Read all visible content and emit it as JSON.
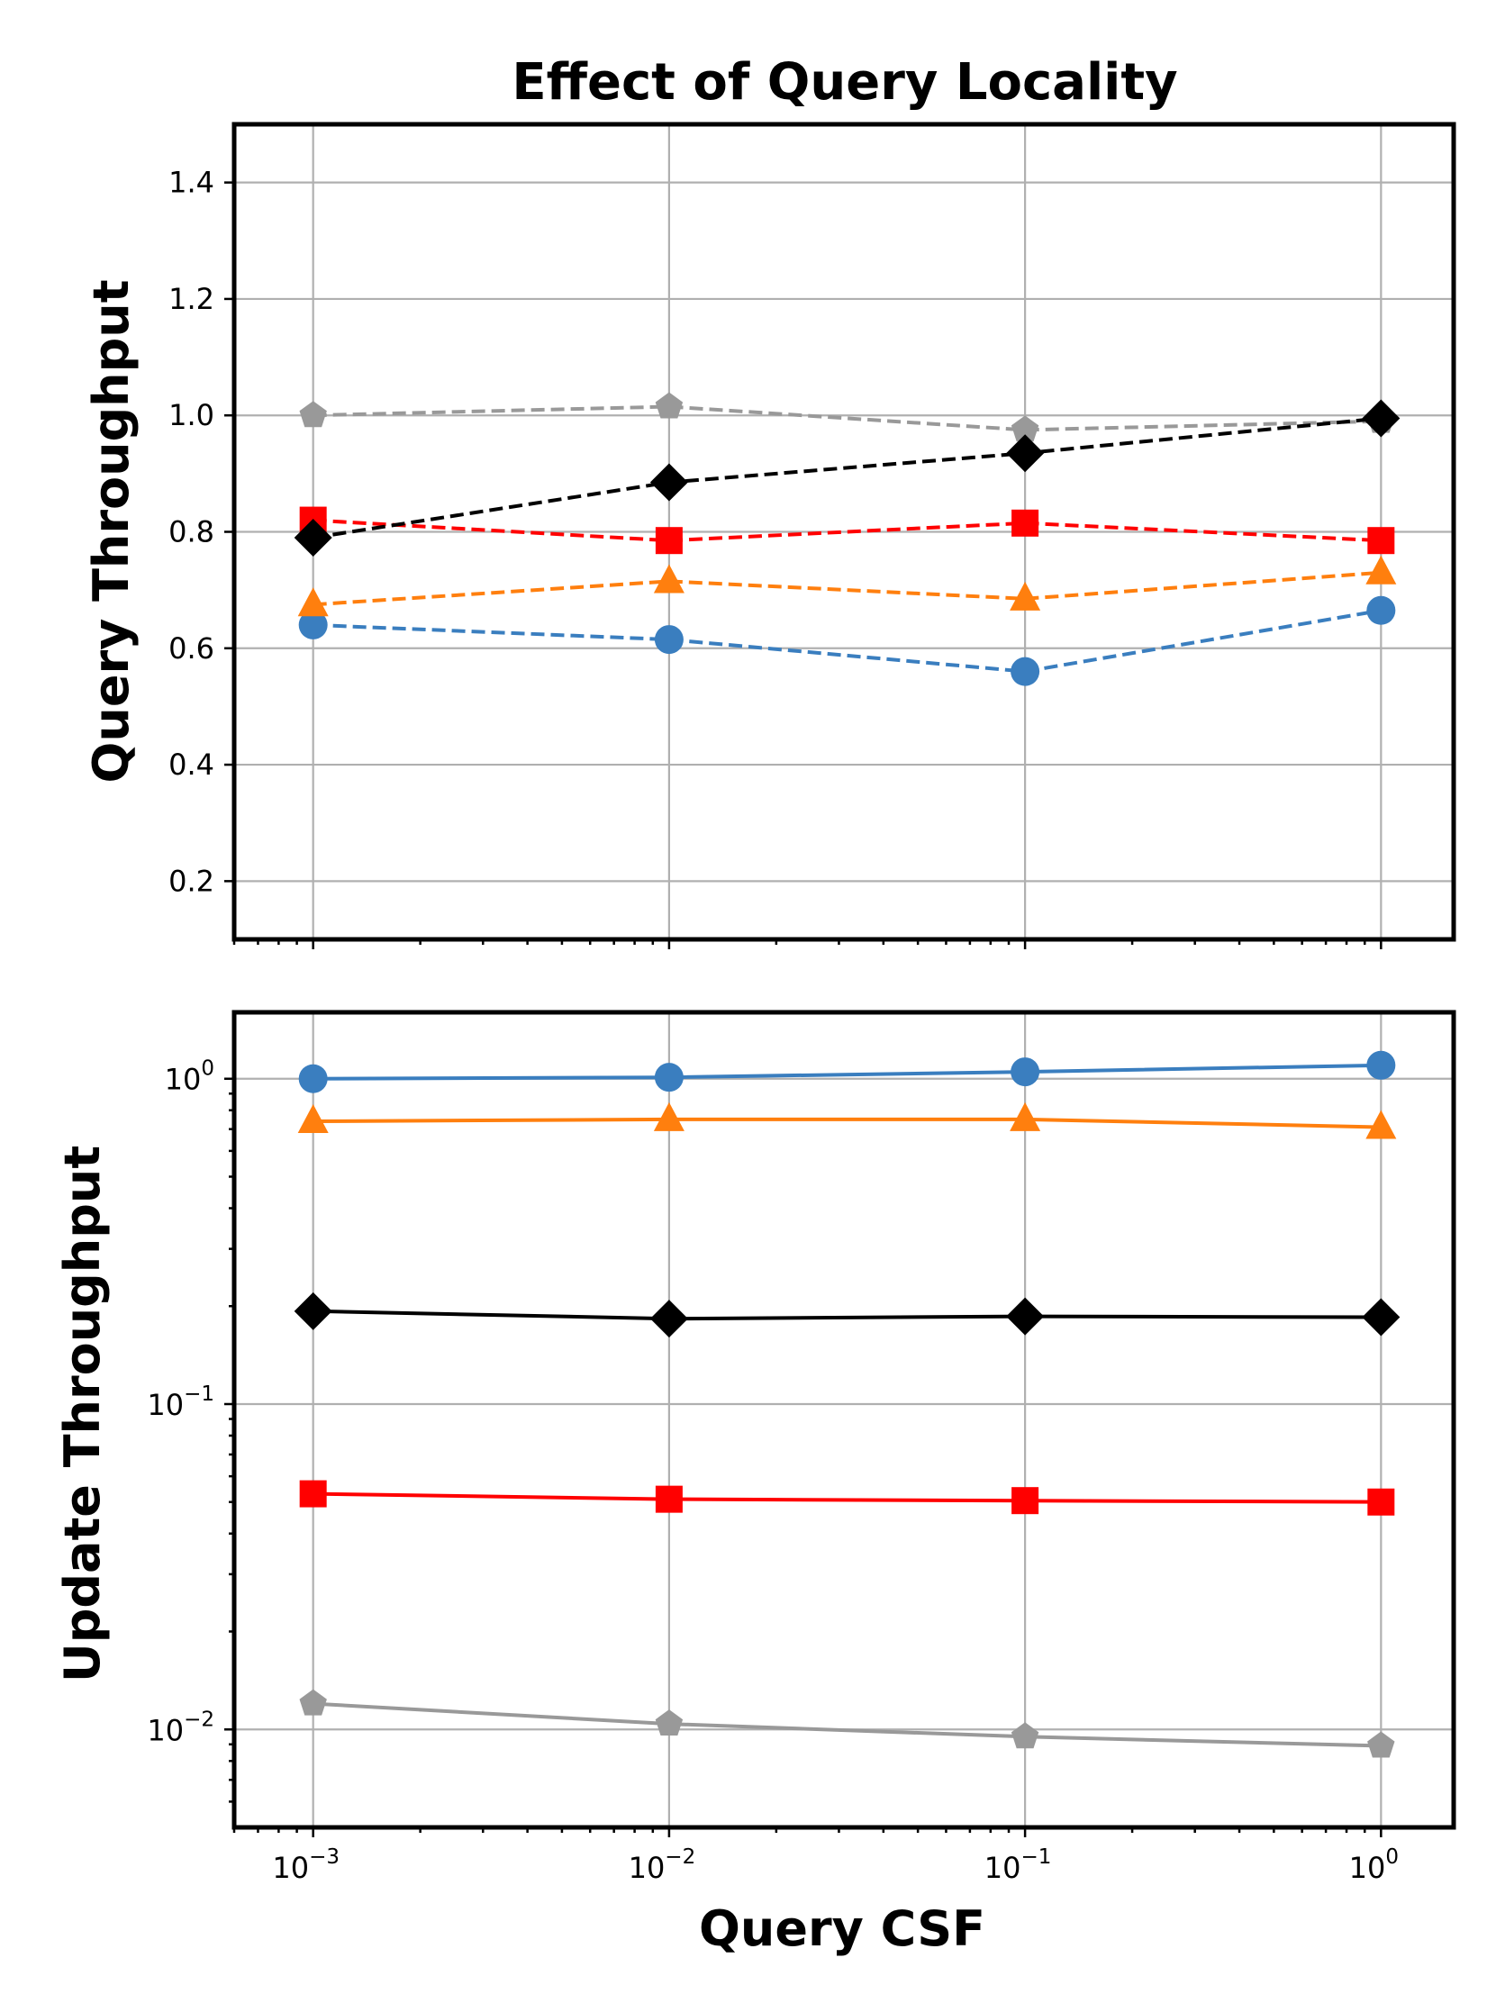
{
  "figure_title": "Effect of Query Locality",
  "chart_data": [
    {
      "type": "line",
      "panel": "top",
      "title": "Effect of Query Locality",
      "ylabel": "Query Throughput",
      "xlabel": "",
      "xscale": "log",
      "yscale": "linear",
      "xlim": [
        0.0006,
        1.6
      ],
      "ylim": [
        0.1,
        1.5
      ],
      "grid": true,
      "x": [
        0.001,
        0.01,
        0.1,
        1
      ],
      "yticks": [
        0.2,
        0.4,
        0.6,
        0.8,
        1.0,
        1.2,
        1.4
      ],
      "ytick_labels": [
        "0.2",
        "0.4",
        "0.6",
        "0.8",
        "1.0",
        "1.2",
        "1.4"
      ],
      "series": [
        {
          "name": "blue-circle",
          "color": "#3a7ebf",
          "marker": "circle",
          "linestyle": "dashed",
          "values": [
            0.64,
            0.615,
            0.56,
            0.665
          ]
        },
        {
          "name": "orange-triangle",
          "color": "#ff7f0e",
          "marker": "triangle",
          "linestyle": "dashed",
          "values": [
            0.675,
            0.715,
            0.685,
            0.73
          ]
        },
        {
          "name": "red-square",
          "color": "#ff0000",
          "marker": "square",
          "linestyle": "dashed",
          "values": [
            0.82,
            0.785,
            0.815,
            0.785
          ]
        },
        {
          "name": "gray-pentagon",
          "color": "#999999",
          "marker": "pentagon",
          "linestyle": "dashed",
          "values": [
            1.0,
            1.015,
            0.975,
            0.99
          ]
        },
        {
          "name": "black-diamond",
          "color": "#000000",
          "marker": "diamond",
          "linestyle": "dashed",
          "values": [
            0.79,
            0.885,
            0.935,
            0.995
          ]
        }
      ]
    },
    {
      "type": "line",
      "panel": "bottom",
      "ylabel": "Update Throughput",
      "xlabel": "Query CSF",
      "xscale": "log",
      "yscale": "log",
      "xlim": [
        0.0006,
        1.6
      ],
      "ylim": [
        0.005,
        1.6
      ],
      "grid": true,
      "x": [
        0.001,
        0.01,
        0.1,
        1
      ],
      "xtick_bases": [
        "10",
        "10",
        "10",
        "10"
      ],
      "xtick_exps": [
        "−3",
        "−2",
        "−1",
        "0"
      ],
      "ytick_bases": [
        "10",
        "10",
        "10"
      ],
      "ytick_exps": [
        "0",
        "−1",
        "−2"
      ],
      "series": [
        {
          "name": "blue-circle",
          "color": "#3a7ebf",
          "marker": "circle",
          "linestyle": "solid",
          "values": [
            1.0,
            1.01,
            1.05,
            1.1
          ]
        },
        {
          "name": "orange-triangle",
          "color": "#ff7f0e",
          "marker": "triangle",
          "linestyle": "solid",
          "values": [
            0.74,
            0.75,
            0.75,
            0.71
          ]
        },
        {
          "name": "black-diamond",
          "color": "#000000",
          "marker": "diamond",
          "linestyle": "solid",
          "values": [
            0.193,
            0.183,
            0.186,
            0.185
          ]
        },
        {
          "name": "red-square",
          "color": "#ff0000",
          "marker": "square",
          "linestyle": "solid",
          "values": [
            0.053,
            0.051,
            0.0505,
            0.05
          ]
        },
        {
          "name": "gray-pentagon",
          "color": "#999999",
          "marker": "pentagon",
          "linestyle": "solid",
          "values": [
            0.012,
            0.0104,
            0.0095,
            0.0089
          ]
        }
      ]
    }
  ]
}
